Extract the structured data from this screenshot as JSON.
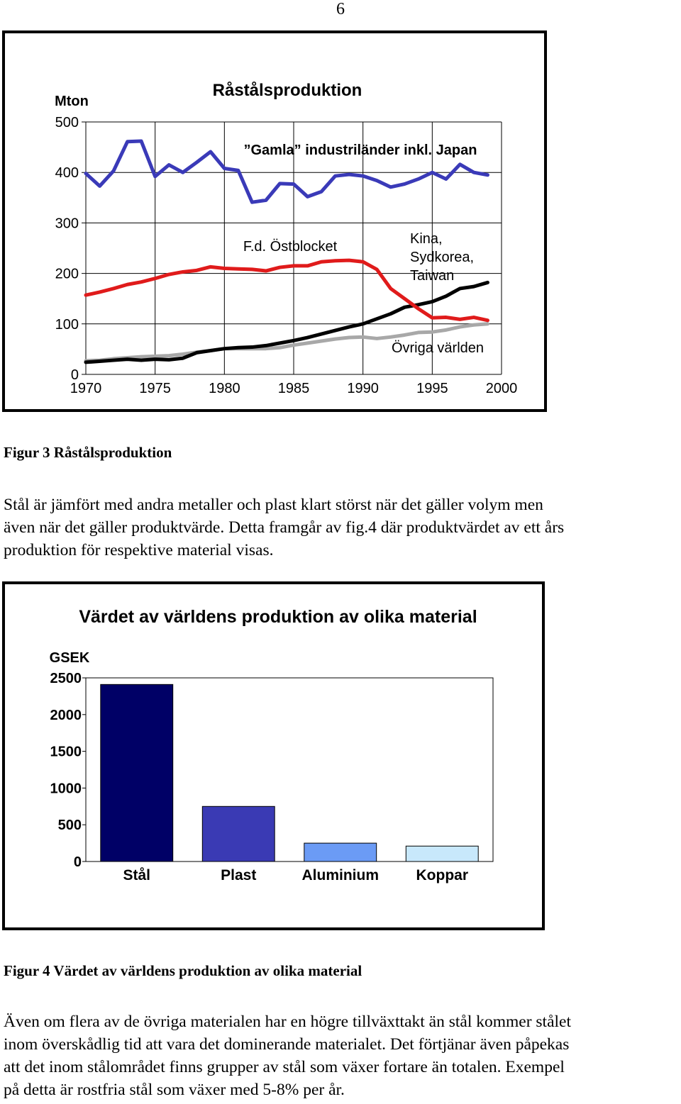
{
  "page_number": "6",
  "figure3_caption": "Figur 3 Råstålsproduktion",
  "paragraph1_lines": [
    "Stål är jämfört med andra metaller och plast klart störst när det gäller volym men",
    "även när det gäller produktvärde. Detta framgår av fig.4 där produktvärdet av ett års",
    "produktion för respektive material visas."
  ],
  "figure4_caption": "Figur 4 Värdet av världens produktion av olika material",
  "paragraph2_lines": [
    "Även om flera av de övriga materialen har en högre tillväxttakt än stål kommer stålet",
    "inom överskådlig tid att vara det dominerande materialet. Det förtjänar även påpekas",
    "att det inom stålområdet finns grupper av stål som växer fortare än totalen. Exempel",
    "på detta är rostfria stål som växer med 5-8% per år."
  ],
  "chart_data": [
    {
      "type": "line",
      "title": "Råstålsproduktion",
      "ylabel": "Mton",
      "xlabel": "",
      "xlim": [
        1970,
        2000
      ],
      "ylim": [
        0,
        500
      ],
      "x_ticks": [
        1970,
        1975,
        1980,
        1985,
        1990,
        1995,
        2000
      ],
      "y_ticks": [
        0,
        100,
        200,
        300,
        400,
        500
      ],
      "grid": "vertical",
      "series": [
        {
          "name": "”Gamla” industriländer inkl. Japan",
          "color": "#3a3ab8",
          "x": [
            1970,
            1971,
            1972,
            1973,
            1974,
            1975,
            1976,
            1977,
            1978,
            1979,
            1980,
            1981,
            1982,
            1983,
            1984,
            1985,
            1986,
            1987,
            1988,
            1989,
            1990,
            1991,
            1992,
            1993,
            1994,
            1995,
            1996,
            1997,
            1998,
            1999
          ],
          "y": [
            398,
            373,
            403,
            461,
            462,
            392,
            415,
            400,
            420,
            441,
            408,
            404,
            341,
            345,
            378,
            377,
            352,
            362,
            393,
            396,
            393,
            384,
            371,
            377,
            387,
            400,
            387,
            416,
            400,
            395
          ]
        },
        {
          "name": "F.d. Östblocket",
          "color": "#e01b1b",
          "x": [
            1970,
            1971,
            1972,
            1973,
            1974,
            1975,
            1976,
            1977,
            1978,
            1979,
            1980,
            1981,
            1982,
            1983,
            1984,
            1985,
            1986,
            1987,
            1988,
            1989,
            1990,
            1991,
            1992,
            1993,
            1994,
            1995,
            1996,
            1997,
            1998,
            1999
          ],
          "y": [
            157,
            163,
            170,
            178,
            183,
            190,
            198,
            203,
            206,
            213,
            210,
            209,
            208,
            205,
            212,
            215,
            215,
            223,
            225,
            226,
            223,
            208,
            170,
            150,
            130,
            112,
            113,
            109,
            113,
            107
          ]
        },
        {
          "name": "Kina, Sydkorea, Taiwan",
          "color": "#000000",
          "x": [
            1970,
            1971,
            1972,
            1973,
            1974,
            1975,
            1976,
            1977,
            1978,
            1979,
            1980,
            1981,
            1982,
            1983,
            1984,
            1985,
            1986,
            1987,
            1988,
            1989,
            1990,
            1991,
            1992,
            1993,
            1994,
            1995,
            1996,
            1997,
            1998,
            1999
          ],
          "y": [
            24,
            26,
            28,
            30,
            28,
            30,
            29,
            32,
            43,
            47,
            51,
            53,
            54,
            57,
            62,
            67,
            73,
            80,
            87,
            94,
            100,
            110,
            120,
            133,
            138,
            144,
            155,
            170,
            174,
            182
          ]
        },
        {
          "name": "Övriga världen",
          "color": "#a8a8a8",
          "x": [
            1970,
            1971,
            1972,
            1973,
            1974,
            1975,
            1976,
            1977,
            1978,
            1979,
            1980,
            1981,
            1982,
            1983,
            1984,
            1985,
            1986,
            1987,
            1988,
            1989,
            1990,
            1991,
            1992,
            1993,
            1994,
            1995,
            1996,
            1997,
            1998,
            1999
          ],
          "y": [
            27,
            28,
            31,
            33,
            35,
            36,
            37,
            40,
            44,
            47,
            51,
            51,
            51,
            51,
            53,
            58,
            62,
            66,
            70,
            73,
            74,
            71,
            74,
            78,
            83,
            84,
            88,
            94,
            98,
            100
          ]
        }
      ]
    },
    {
      "type": "bar",
      "title": "Värdet av världens produktion av olika material",
      "ylabel": "GSEK",
      "xlabel": "",
      "ylim": [
        0,
        2500
      ],
      "y_ticks": [
        0,
        500,
        1000,
        1500,
        2000,
        2500
      ],
      "grid": "none",
      "categories": [
        "Stål",
        "Plast",
        "Aluminium",
        "Koppar"
      ],
      "values": [
        2410,
        750,
        250,
        210
      ],
      "colors": [
        "#000066",
        "#3a3ab4",
        "#6b9bf5",
        "#c8e8fb"
      ]
    }
  ]
}
